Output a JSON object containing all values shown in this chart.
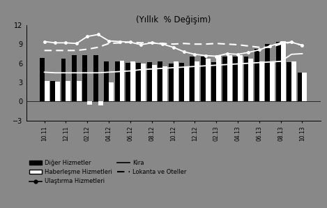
{
  "title": "(Yıllık  % Değişim)",
  "background_color": "#888888",
  "plot_bg_color": "#888888",
  "ylim": [
    -3,
    12
  ],
  "yticks": [
    -3,
    0,
    3,
    6,
    9,
    12
  ],
  "x_labels": [
    "10.11",
    "12.11",
    "02.12",
    "04.12",
    "06.12",
    "08.12",
    "10.12",
    "12.12",
    "02.13",
    "04.13",
    "06.13",
    "08.13",
    "10.13"
  ],
  "diger_hizmetler": [
    6.8,
    3.2,
    6.7,
    7.3,
    7.3,
    7.3,
    6.3,
    6.3,
    6.1,
    6.1,
    6.2,
    6.3,
    6.0,
    6.1,
    7.0,
    7.0,
    6.2,
    7.0,
    7.0,
    7.0,
    8.3,
    9.0,
    9.3,
    6.2,
    4.5
  ],
  "haberlesme": [
    3.2,
    3.1,
    3.2,
    3.2,
    -0.5,
    -0.6,
    3.0,
    6.4,
    6.3,
    6.0,
    5.7,
    5.5,
    6.3,
    5.4,
    6.3,
    6.7,
    7.3,
    7.3,
    7.3,
    6.7,
    6.3,
    6.2,
    9.5,
    6.3,
    4.5
  ],
  "ulastirma": [
    9.4,
    9.2,
    9.2,
    9.1,
    10.2,
    10.5,
    9.5,
    9.4,
    9.3,
    8.9,
    9.2,
    9.0,
    8.5,
    7.8,
    7.4,
    7.2,
    7.1,
    7.5,
    7.4,
    7.7,
    8.1,
    8.7,
    9.2,
    9.3,
    8.8
  ],
  "kira": [
    4.6,
    4.5,
    4.5,
    4.5,
    4.5,
    4.5,
    4.6,
    4.7,
    4.8,
    5.0,
    5.1,
    5.2,
    5.3,
    5.4,
    5.5,
    5.6,
    5.7,
    5.8,
    5.9,
    6.0,
    6.1,
    6.2,
    6.3,
    7.4,
    7.5
  ],
  "lokanta": [
    8.0,
    8.0,
    8.0,
    8.0,
    8.2,
    8.5,
    9.1,
    9.2,
    9.3,
    9.2,
    9.2,
    9.1,
    9.0,
    9.1,
    9.0,
    9.0,
    9.1,
    9.0,
    8.9,
    8.7,
    8.5,
    8.5,
    9.0,
    9.3,
    8.8
  ],
  "legend_labels": [
    "Diğer Hizmetler",
    "Haberleşme Hizmetleri",
    "Ulaştırma Hizmetleri",
    "Kira",
    "Lokanta ve Oteller"
  ]
}
